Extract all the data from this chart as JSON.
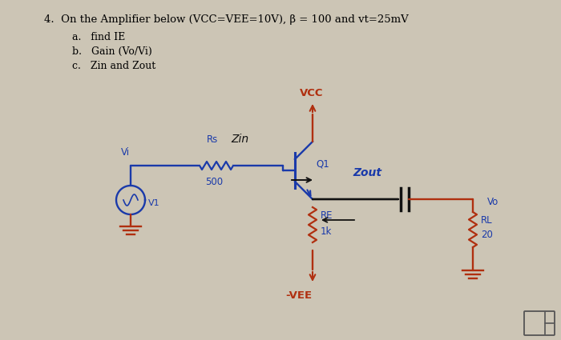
{
  "title": "4.  On the Amplifier below (VCC=VEE=10V), β = 100 and vt=25mV",
  "sub_a": "a.   find IE",
  "sub_b": "b.   Gain (Vo/Vi)",
  "sub_c": "c.   Zin and Zout",
  "bg_color": "#ccc5b5",
  "blue": "#1a3aaa",
  "red": "#b03010",
  "dark": "#111111",
  "label_VCC": "VCC",
  "label_VEE": "-VEE",
  "label_Rs": "Rs",
  "label_500": "500",
  "label_Vi": "Vi",
  "label_V1": "V1",
  "label_Zin": "Zin",
  "label_Zout": "Zout",
  "label_Q1": "Q1",
  "label_RE": "RE",
  "label_1k": "1k",
  "label_RL": "RL",
  "label_20": "20",
  "label_Vo": "Vo"
}
